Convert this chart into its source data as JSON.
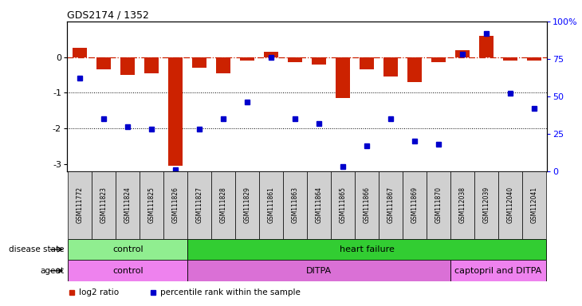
{
  "title": "GDS2174 / 1352",
  "samples": [
    "GSM111772",
    "GSM111823",
    "GSM111824",
    "GSM111825",
    "GSM111826",
    "GSM111827",
    "GSM111828",
    "GSM111829",
    "GSM111861",
    "GSM111863",
    "GSM111864",
    "GSM111865",
    "GSM111866",
    "GSM111867",
    "GSM111869",
    "GSM111870",
    "GSM112038",
    "GSM112039",
    "GSM112040",
    "GSM112041"
  ],
  "log2_ratio": [
    0.25,
    -0.35,
    -0.5,
    -0.45,
    -3.05,
    -0.3,
    -0.45,
    -0.1,
    0.15,
    -0.15,
    -0.2,
    -1.15,
    -0.35,
    -0.55,
    -0.7,
    -0.15,
    0.2,
    0.6,
    -0.1,
    -0.1
  ],
  "percentile": [
    62,
    35,
    30,
    28,
    1,
    28,
    35,
    46,
    76,
    35,
    32,
    3,
    17,
    35,
    20,
    18,
    78,
    92,
    52,
    42
  ],
  "disease_state_groups": [
    {
      "label": "control",
      "start": 0,
      "end": 4,
      "color": "#90ee90"
    },
    {
      "label": "heart failure",
      "start": 5,
      "end": 19,
      "color": "#32cd32"
    }
  ],
  "agent_groups": [
    {
      "label": "control",
      "start": 0,
      "end": 4,
      "color": "#ee82ee"
    },
    {
      "label": "DITPA",
      "start": 5,
      "end": 15,
      "color": "#da70d6"
    },
    {
      "label": "captopril and DITPA",
      "start": 16,
      "end": 19,
      "color": "#ee82ee"
    }
  ],
  "ylim_left": [
    -3.2,
    1.0
  ],
  "ylim_right": [
    0,
    100
  ],
  "bar_color": "#cc2200",
  "dot_color": "#0000cc",
  "hline_color": "#cc2200",
  "grid_color": "#000000",
  "bg_color": "#ffffff",
  "plot_bg": "#ffffff",
  "sample_box_color": "#d0d0d0",
  "legend_items": [
    {
      "label": "log2 ratio",
      "color": "#cc2200"
    },
    {
      "label": "percentile rank within the sample",
      "color": "#0000cc"
    }
  ]
}
